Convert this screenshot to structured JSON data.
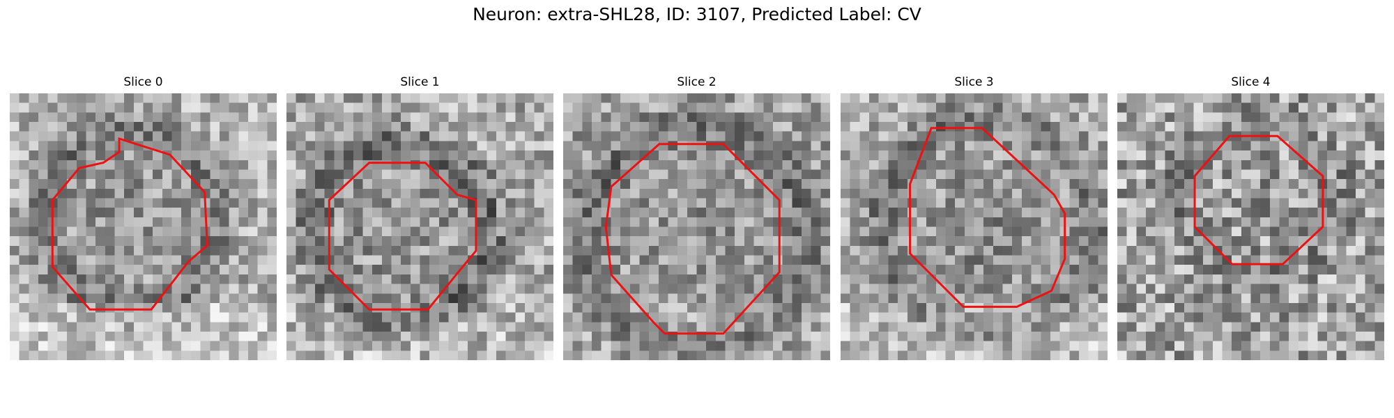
{
  "figure": {
    "title": "Neuron: extra-SHL28, ID: 3107, Predicted Label: CV"
  },
  "colors": {
    "contour": "#ee1111",
    "background": "#ffffff"
  },
  "panels": [
    {
      "title": "Slice 0",
      "contour": [
        [
          0.41,
          0.17
        ],
        [
          0.6,
          0.23
        ],
        [
          0.73,
          0.37
        ],
        [
          0.74,
          0.57
        ],
        [
          0.67,
          0.63
        ],
        [
          0.53,
          0.81
        ],
        [
          0.3,
          0.81
        ],
        [
          0.16,
          0.65
        ],
        [
          0.16,
          0.4
        ],
        [
          0.26,
          0.28
        ],
        [
          0.35,
          0.26
        ],
        [
          0.41,
          0.22
        ]
      ]
    },
    {
      "title": "Slice 1",
      "contour": [
        [
          0.31,
          0.26
        ],
        [
          0.52,
          0.26
        ],
        [
          0.64,
          0.38
        ],
        [
          0.71,
          0.4
        ],
        [
          0.71,
          0.59
        ],
        [
          0.66,
          0.65
        ],
        [
          0.53,
          0.81
        ],
        [
          0.31,
          0.81
        ],
        [
          0.16,
          0.66
        ],
        [
          0.16,
          0.4
        ]
      ]
    },
    {
      "title": "Slice 2",
      "contour": [
        [
          0.36,
          0.19
        ],
        [
          0.6,
          0.19
        ],
        [
          0.81,
          0.4
        ],
        [
          0.81,
          0.67
        ],
        [
          0.6,
          0.9
        ],
        [
          0.38,
          0.9
        ],
        [
          0.34,
          0.86
        ],
        [
          0.18,
          0.68
        ],
        [
          0.16,
          0.5
        ],
        [
          0.18,
          0.35
        ]
      ]
    },
    {
      "title": "Slice 3",
      "contour": [
        [
          0.34,
          0.13
        ],
        [
          0.53,
          0.13
        ],
        [
          0.8,
          0.38
        ],
        [
          0.84,
          0.45
        ],
        [
          0.84,
          0.62
        ],
        [
          0.79,
          0.74
        ],
        [
          0.66,
          0.8
        ],
        [
          0.46,
          0.8
        ],
        [
          0.26,
          0.6
        ],
        [
          0.26,
          0.34
        ]
      ]
    },
    {
      "title": "Slice 4",
      "contour": [
        [
          0.42,
          0.16
        ],
        [
          0.6,
          0.16
        ],
        [
          0.77,
          0.31
        ],
        [
          0.77,
          0.5
        ],
        [
          0.62,
          0.64
        ],
        [
          0.43,
          0.64
        ],
        [
          0.29,
          0.5
        ],
        [
          0.29,
          0.31
        ]
      ]
    }
  ]
}
